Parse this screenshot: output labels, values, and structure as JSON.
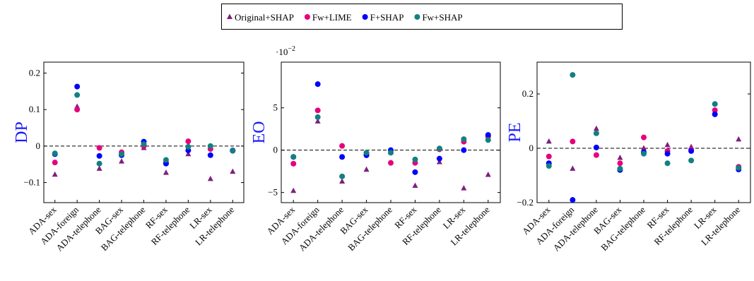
{
  "legend": {
    "marker_shapes": [
      "triangle",
      "circle",
      "circle",
      "circle"
    ]
  },
  "chart_data": [
    {
      "type": "scatter",
      "y_label": "DP",
      "categories": [
        "ADA-sex",
        "ADA-foreign",
        "ADA-telephone",
        "BAG-sex",
        "BAG-telephone",
        "RF-sex",
        "RF-telephone",
        "LR-sex",
        "LR-telephone"
      ],
      "ylim": [
        -0.155,
        0.23
      ],
      "yticks": [
        {
          "value": -0.1,
          "label": "−0.1"
        },
        0,
        0.1,
        0.2
      ],
      "hline": 0,
      "series": [
        {
          "name": "Original+SHAP",
          "color": "#7f1f7f",
          "values": [
            -0.078,
            0.108,
            -0.062,
            -0.042,
            -0.005,
            -0.073,
            -0.022,
            -0.09,
            -0.07
          ]
        },
        {
          "name": "Fw+LIME",
          "color": "#e6007e",
          "values": [
            -0.045,
            0.1,
            -0.005,
            -0.017,
            0.0,
            -0.045,
            0.013,
            -0.008,
            -0.013
          ]
        },
        {
          "name": "F+SHAP",
          "color": "#0000ff",
          "values": [
            -0.022,
            0.163,
            -0.027,
            -0.025,
            0.012,
            -0.048,
            -0.012,
            -0.025,
            -0.012
          ]
        },
        {
          "name": "Fw+SHAP",
          "color": "#138080",
          "values": [
            -0.02,
            0.14,
            -0.048,
            -0.022,
            0.005,
            -0.038,
            -0.002,
            0.0,
            -0.013
          ]
        }
      ]
    },
    {
      "type": "scatter",
      "y_label": "EO",
      "y_scale": {
        "base": "·10",
        "exponent": "−2"
      },
      "categories": [
        "ADA-sex",
        "ADA-foreign",
        "ADA-telephone",
        "BAG-sex",
        "BAG-telephone",
        "RF-sex",
        "RF-telephone",
        "LR-sex",
        "LR-telephone"
      ],
      "ylim": [
        -6.2,
        10.4
      ],
      "yticks": [
        {
          "value": -5,
          "label": "−5"
        },
        0,
        5
      ],
      "hline": 0,
      "series": [
        {
          "name": "Original+SHAP",
          "color": "#7f1f7f",
          "values": [
            -4.8,
            3.4,
            -3.7,
            -2.3,
            -0.2,
            -4.2,
            -1.4,
            -4.5,
            -2.9
          ]
        },
        {
          "name": "Fw+LIME",
          "color": "#e6007e",
          "values": [
            -1.6,
            4.7,
            0.5,
            -0.5,
            -1.5,
            -1.5,
            0.1,
            1.0,
            1.6
          ]
        },
        {
          "name": "F+SHAP",
          "color": "#0000ff",
          "values": [
            -0.8,
            7.8,
            -0.8,
            -0.6,
            0.0,
            -2.6,
            -1.0,
            0.0,
            1.8
          ]
        },
        {
          "name": "Fw+SHAP",
          "color": "#138080",
          "values": [
            -0.8,
            3.9,
            -3.1,
            -0.3,
            -0.3,
            -1.1,
            0.2,
            1.3,
            1.2
          ]
        }
      ]
    },
    {
      "type": "scatter",
      "y_label": "PE",
      "categories": [
        "ADA-sex",
        "ADA-foreign",
        "ADA-telephone",
        "BAG-sex",
        "BAG-telephone",
        "RF-sex",
        "RF-telephone",
        "LR-sex",
        "LR-telephone"
      ],
      "ylim": [
        -0.2,
        0.317
      ],
      "yticks": [
        {
          "value": -0.2,
          "label": "−0.2"
        },
        0,
        0.2
      ],
      "hline": 0,
      "series": [
        {
          "name": "Original+SHAP",
          "color": "#7f1f7f",
          "values": [
            0.025,
            -0.075,
            0.072,
            -0.035,
            0.0,
            0.012,
            0.005,
            0.135,
            0.033
          ]
        },
        {
          "name": "Fw+LIME",
          "color": "#e6007e",
          "values": [
            -0.03,
            0.025,
            -0.025,
            -0.055,
            0.04,
            -0.01,
            -0.005,
            0.14,
            -0.068
          ]
        },
        {
          "name": "F+SHAP",
          "color": "#0000ff",
          "values": [
            -0.055,
            -0.19,
            0.003,
            -0.08,
            -0.015,
            -0.02,
            -0.01,
            0.125,
            -0.078
          ]
        },
        {
          "name": "Fw+SHAP",
          "color": "#138080",
          "values": [
            -0.065,
            0.27,
            0.055,
            -0.075,
            -0.02,
            -0.055,
            -0.045,
            0.163,
            -0.072
          ]
        }
      ]
    }
  ]
}
